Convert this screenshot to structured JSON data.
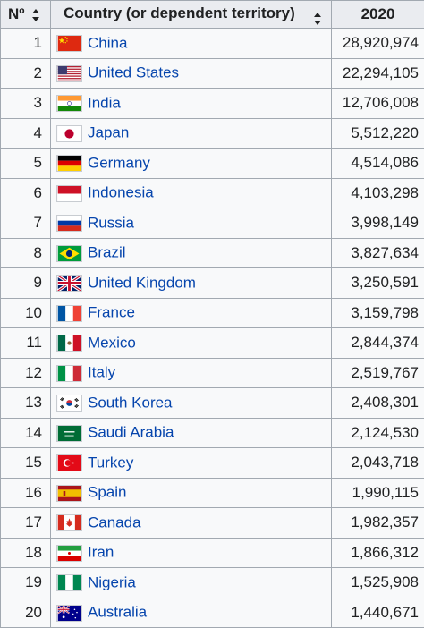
{
  "table": {
    "headers": {
      "rank": "Nº",
      "country": "Country (or dependent territory)",
      "value": "2020"
    },
    "rows": [
      {
        "rank": "1",
        "country": "China",
        "value": "28,920,974",
        "flag": "flag-china-icon"
      },
      {
        "rank": "2",
        "country": "United States",
        "value": "22,294,105",
        "flag": "flag-united-states-icon"
      },
      {
        "rank": "3",
        "country": "India",
        "value": "12,706,008",
        "flag": "flag-india-icon"
      },
      {
        "rank": "4",
        "country": "Japan",
        "value": "5,512,220",
        "flag": "flag-japan-icon"
      },
      {
        "rank": "5",
        "country": "Germany",
        "value": "4,514,086",
        "flag": "flag-germany-icon"
      },
      {
        "rank": "6",
        "country": "Indonesia",
        "value": "4,103,298",
        "flag": "flag-indonesia-icon"
      },
      {
        "rank": "7",
        "country": "Russia",
        "value": "3,998,149",
        "flag": "flag-russia-icon"
      },
      {
        "rank": "8",
        "country": "Brazil",
        "value": "3,827,634",
        "flag": "flag-brazil-icon"
      },
      {
        "rank": "9",
        "country": "United Kingdom",
        "value": "3,250,591",
        "flag": "flag-united-kingdom-icon"
      },
      {
        "rank": "10",
        "country": "France",
        "value": "3,159,798",
        "flag": "flag-france-icon"
      },
      {
        "rank": "11",
        "country": "Mexico",
        "value": "2,844,374",
        "flag": "flag-mexico-icon"
      },
      {
        "rank": "12",
        "country": "Italy",
        "value": "2,519,767",
        "flag": "flag-italy-icon"
      },
      {
        "rank": "13",
        "country": "South Korea",
        "value": "2,408,301",
        "flag": "flag-south-korea-icon"
      },
      {
        "rank": "14",
        "country": "Saudi Arabia",
        "value": "2,124,530",
        "flag": "flag-saudi-arabia-icon"
      },
      {
        "rank": "15",
        "country": "Turkey",
        "value": "2,043,718",
        "flag": "flag-turkey-icon"
      },
      {
        "rank": "16",
        "country": "Spain",
        "value": "1,990,115",
        "flag": "flag-spain-icon"
      },
      {
        "rank": "17",
        "country": "Canada",
        "value": "1,982,357",
        "flag": "flag-canada-icon"
      },
      {
        "rank": "18",
        "country": "Iran",
        "value": "1,866,312",
        "flag": "flag-iran-icon"
      },
      {
        "rank": "19",
        "country": "Nigeria",
        "value": "1,525,908",
        "flag": "flag-nigeria-icon"
      },
      {
        "rank": "20",
        "country": "Australia",
        "value": "1,440,671",
        "flag": "flag-australia-icon"
      }
    ]
  },
  "colors": {
    "link": "#0645ad",
    "header_bg": "#eaecf0",
    "row_bg": "#f8f9fa",
    "border": "#a2a9b1"
  }
}
